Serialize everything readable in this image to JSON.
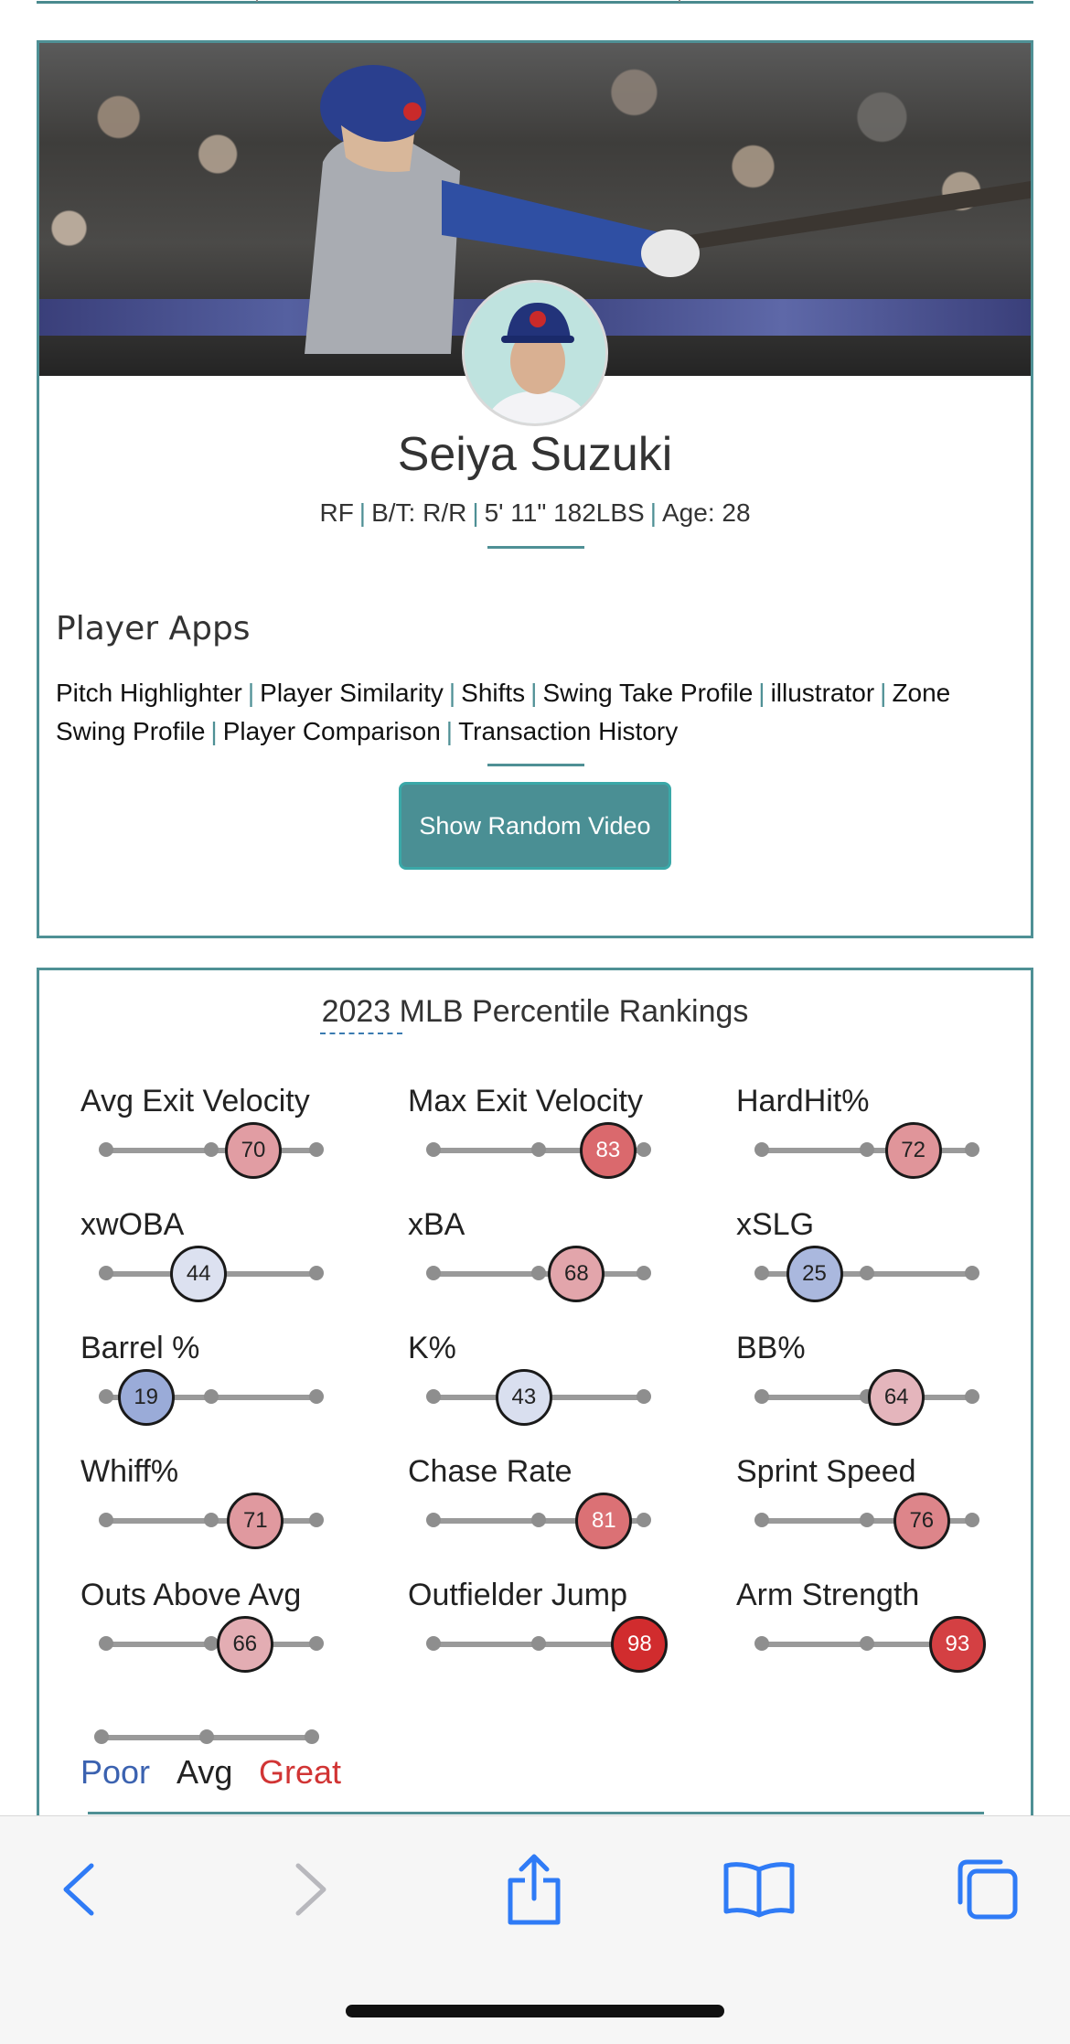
{
  "player": {
    "name": "Seiya Suzuki",
    "position": "RF",
    "bats_throws": "B/T: R/R",
    "size": "5' 11\" 182LBS",
    "age": "Age: 28"
  },
  "apps": {
    "title": "Player Apps",
    "links": [
      "Pitch Highlighter",
      "Player Similarity",
      "Shifts",
      "Swing Take Profile",
      "illustrator",
      "Zone Swing Profile",
      "Player Comparison",
      "Transaction History"
    ],
    "random_video_label": "Show Random Video"
  },
  "rankings": {
    "title": "2023 MLB Percentile Rankings",
    "metrics": [
      {
        "label": "Avg Exit Velocity",
        "value": 70
      },
      {
        "label": "Max Exit Velocity",
        "value": 83
      },
      {
        "label": "HardHit%",
        "value": 72
      },
      {
        "label": "xwOBA",
        "value": 44
      },
      {
        "label": "xBA",
        "value": 68
      },
      {
        "label": "xSLG",
        "value": 25
      },
      {
        "label": "Barrel %",
        "value": 19
      },
      {
        "label": "K%",
        "value": 43
      },
      {
        "label": "BB%",
        "value": 64
      },
      {
        "label": "Whiff%",
        "value": 71
      },
      {
        "label": "Chase Rate",
        "value": 81
      },
      {
        "label": "Sprint Speed",
        "value": 76
      },
      {
        "label": "Outs Above Avg",
        "value": 66
      },
      {
        "label": "Outfielder Jump",
        "value": 98
      },
      {
        "label": "Arm Strength",
        "value": 93
      }
    ],
    "legend": {
      "poor": "Poor",
      "avg": "Avg",
      "great": "Great",
      "poor_color": "#3b62b0",
      "great_color": "#d13434"
    }
  },
  "toolbar": {
    "icons": [
      "back-icon",
      "forward-icon",
      "share-icon",
      "bookmarks-icon",
      "tabs-icon"
    ]
  }
}
